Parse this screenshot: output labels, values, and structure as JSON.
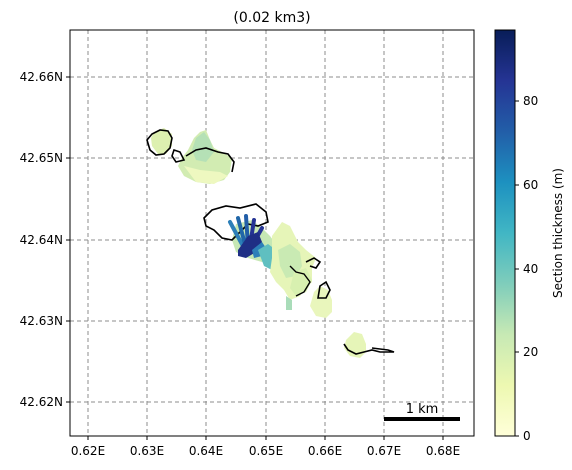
{
  "title": "(0.02 km3)",
  "x_ticks": [
    "0.62E",
    "0.63E",
    "0.64E",
    "0.65E",
    "0.66E",
    "0.67E",
    "0.68E"
  ],
  "y_ticks": [
    "42.66N",
    "42.65N",
    "42.64N",
    "42.63N",
    "42.62N"
  ],
  "colorbar": {
    "label": "Section thickness (m)",
    "ticks": [
      "0",
      "20",
      "40",
      "60",
      "80"
    ],
    "stops": [
      "#ffffd9",
      "#edf8b1",
      "#c7e9b4",
      "#7fcdbb",
      "#41b6c4",
      "#1d91c0",
      "#225ea8",
      "#253494",
      "#081d58"
    ]
  },
  "scale_bar": {
    "label": "1 km"
  },
  "colors": {
    "grid": "#8c8c8c",
    "outline": "#000000"
  }
}
